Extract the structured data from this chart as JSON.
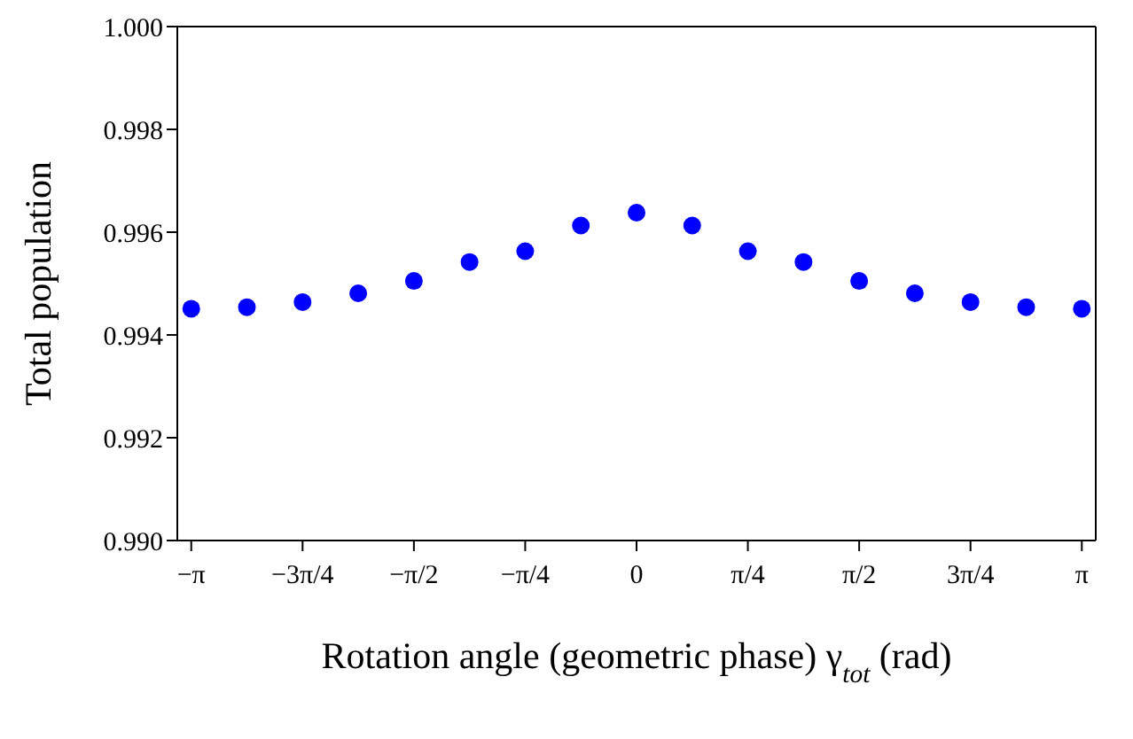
{
  "chart_data": {
    "type": "scatter",
    "xlabel": "Rotation angle (geometric phase) γ$_{tot}$ (rad)",
    "ylabel": "Total population",
    "x": [
      -3.1416,
      -2.7489,
      -2.3562,
      -1.9635,
      -1.5708,
      -1.1781,
      -0.7854,
      -0.3927,
      0,
      0.3927,
      0.7854,
      1.1781,
      1.5708,
      1.9635,
      2.3562,
      2.7489,
      3.1416
    ],
    "series": [
      {
        "color": "#0000ff",
        "values": [
          0.99451,
          0.99454,
          0.99464,
          0.99481,
          0.99505,
          0.99542,
          0.99563,
          0.99613,
          0.99638,
          0.99613,
          0.99563,
          0.99542,
          0.99505,
          0.99481,
          0.99464,
          0.99454,
          0.99451
        ]
      }
    ],
    "xlim": [
      -3.24,
      3.24
    ],
    "ylim": [
      0.99,
      1.0
    ],
    "xticks": [
      {
        "value": -3.1416,
        "label": "−π"
      },
      {
        "value": -2.3562,
        "label": "−3π/4"
      },
      {
        "value": -1.5708,
        "label": "−π/2"
      },
      {
        "value": -0.7854,
        "label": "−π/4"
      },
      0,
      {
        "value": 0.7854,
        "label": "π/4"
      },
      {
        "value": 1.5708,
        "label": "π/2"
      },
      {
        "value": 2.3562,
        "label": "3π/4"
      },
      {
        "value": 3.1416,
        "label": "π"
      }
    ],
    "yticks": [
      {
        "value": 0.99,
        "label": "0.990"
      },
      {
        "value": 0.992,
        "label": "0.992"
      },
      {
        "value": 0.994,
        "label": "0.994"
      },
      {
        "value": 0.996,
        "label": "0.996"
      },
      {
        "value": 0.998,
        "label": "0.998"
      },
      {
        "value": 1.0,
        "label": "1.000"
      }
    ],
    "grid": false,
    "marker": "circle"
  }
}
